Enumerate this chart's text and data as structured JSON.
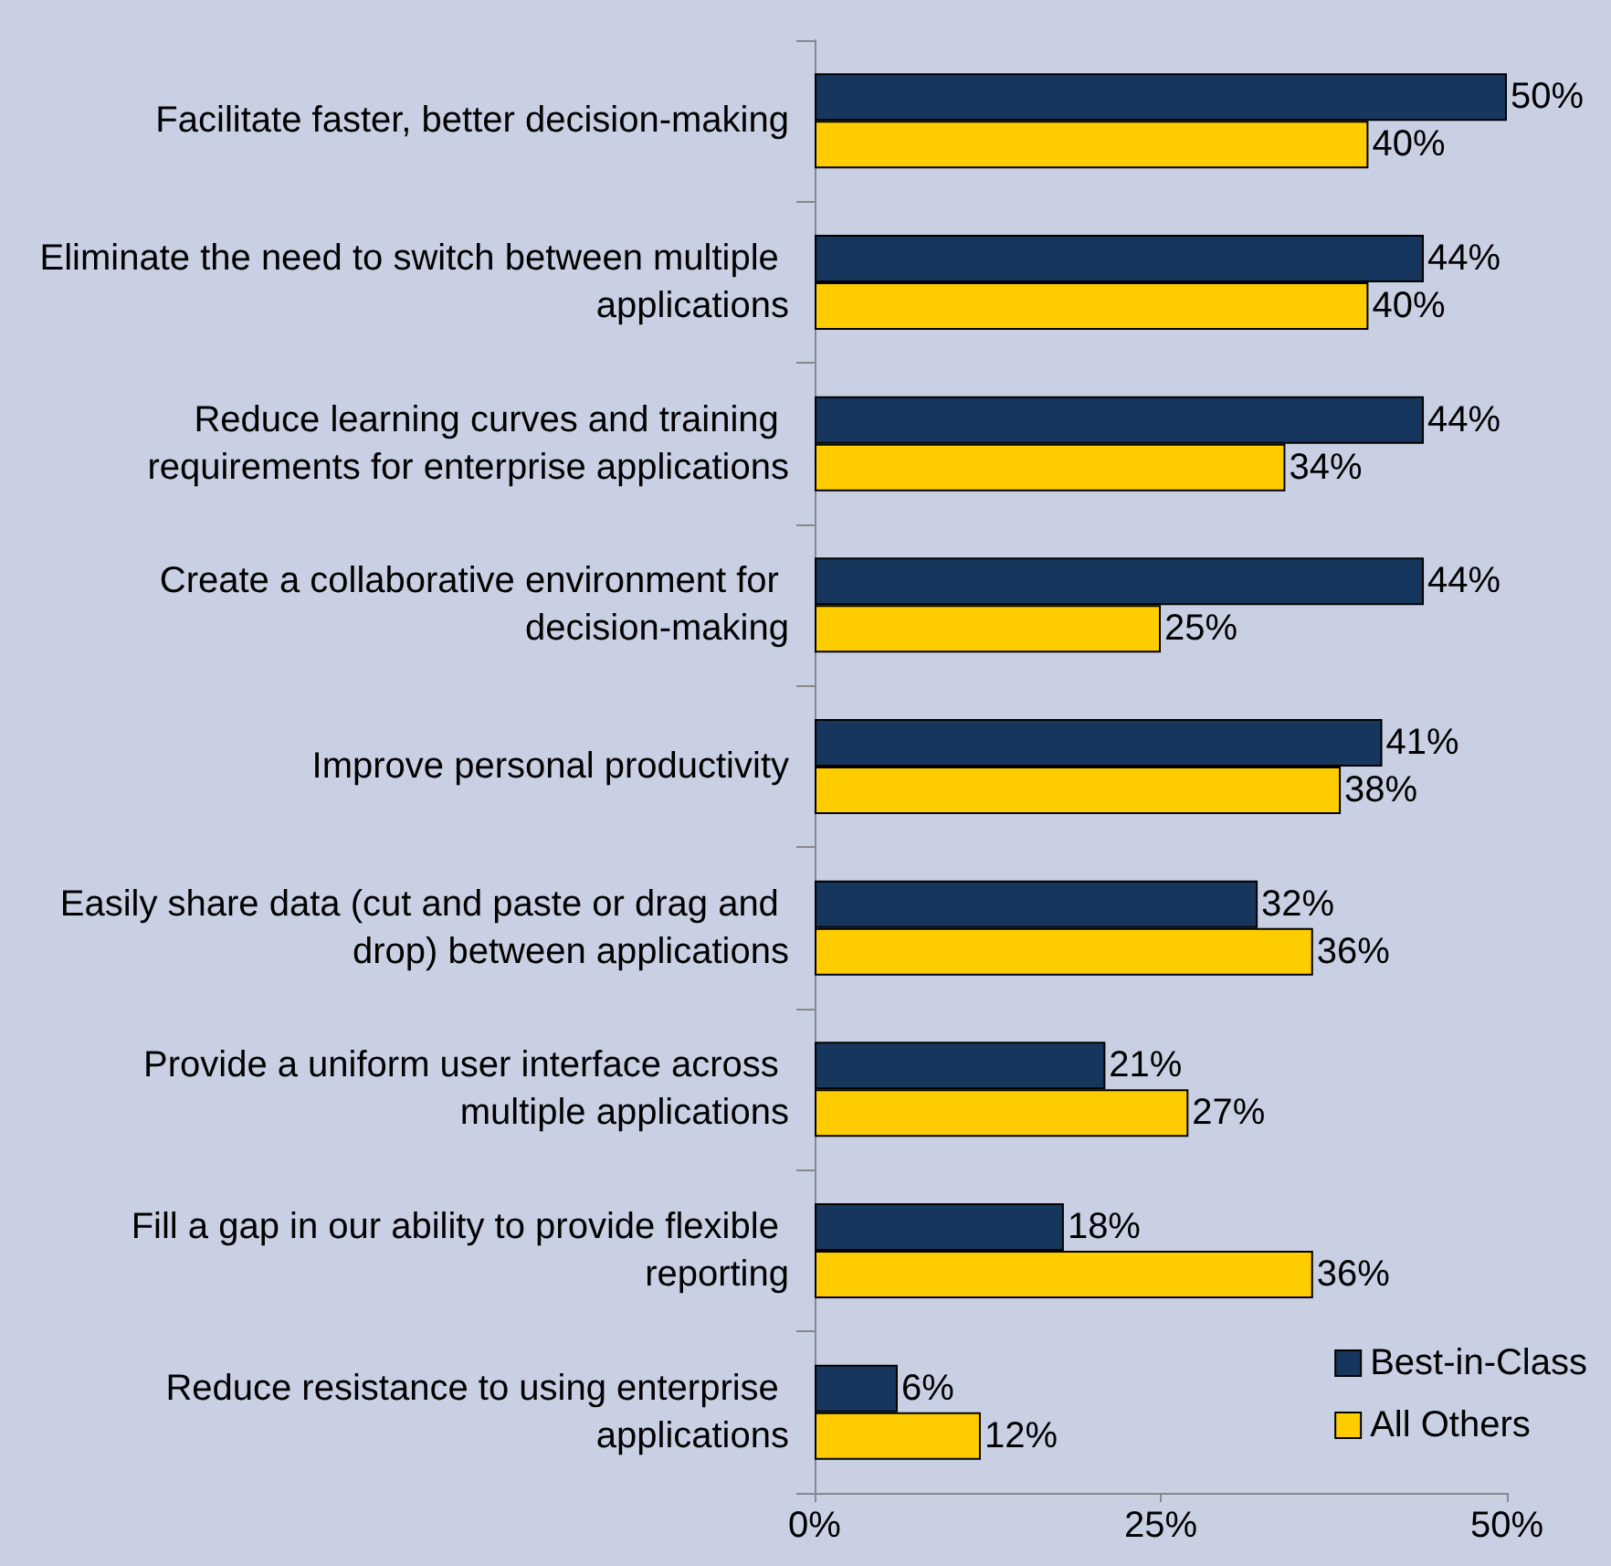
{
  "chart_data": {
    "type": "bar",
    "orientation": "horizontal",
    "categories": [
      "Facilitate faster, better decision-making",
      "Eliminate the need to switch between multiple applications",
      "Reduce learning curves and training requirements for enterprise applications",
      "Create a collaborative environment for decision-making",
      "Improve personal productivity",
      "Easily share data (cut and paste or drag and drop) between applications",
      "Provide a uniform user interface across multiple applications",
      "Fill a gap in our ability to provide flexible reporting",
      "Reduce resistance to using enterprise applications"
    ],
    "series": [
      {
        "name": "Best-in-Class",
        "color": "#17365d",
        "values": [
          50,
          44,
          44,
          44,
          41,
          32,
          21,
          18,
          6
        ],
        "value_labels": [
          "50%",
          "44%",
          "44%",
          "44%",
          "41%",
          "32%",
          "21%",
          "18%",
          "6%"
        ]
      },
      {
        "name": "All Others",
        "color": "#ffcc00",
        "values": [
          40,
          40,
          34,
          25,
          38,
          36,
          27,
          36,
          12
        ],
        "value_labels": [
          "40%",
          "40%",
          "34%",
          "25%",
          "38%",
          "36%",
          "27%",
          "36%",
          "12%"
        ]
      }
    ],
    "xlim": [
      0,
      50
    ],
    "xticks": [
      {
        "value": 0,
        "label": "0%"
      },
      {
        "value": 25,
        "label": "25%"
      },
      {
        "value": 50,
        "label": "50%"
      }
    ],
    "grid": false,
    "legend": "bottom right"
  }
}
